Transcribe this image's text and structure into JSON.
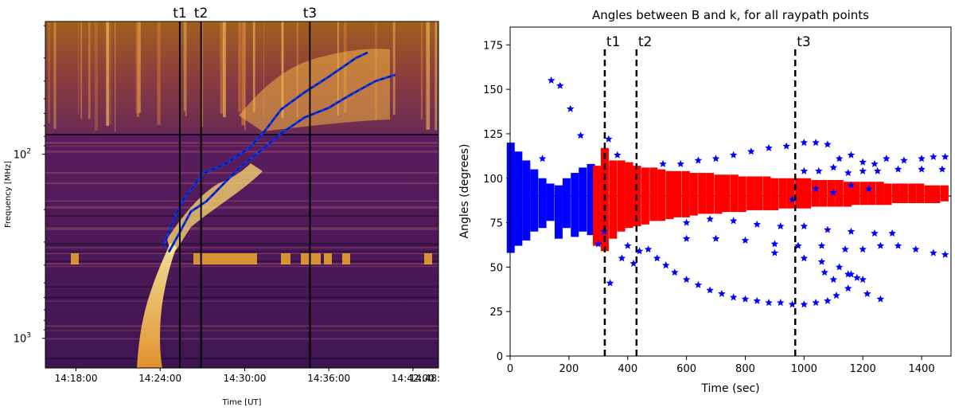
{
  "chart_data": [
    {
      "type": "heatmap",
      "panel": "left",
      "title": "",
      "xlabel": "Time [UT]",
      "ylabel": "Frequency [MHz]",
      "yscale": "log",
      "y_inverted": true,
      "ylim": [
        1450,
        19
      ],
      "xlim": [
        0,
        1
      ],
      "x_ticks": [
        {
          "label": "14:18:00",
          "pos": 0.078
        },
        {
          "label": "14:24:00",
          "pos": 0.292
        },
        {
          "label": "14:30:00",
          "pos": 0.507
        },
        {
          "label": "14:36:00",
          "pos": 0.721
        },
        {
          "label": "14:42:00",
          "pos": 0.935
        }
      ],
      "x_tick_partial": "14:48:",
      "y_ticks": [
        {
          "label": "10",
          "sup": "2",
          "value": 100
        },
        {
          "label": "10",
          "sup": "3",
          "value": 1000
        }
      ],
      "vlines": [
        {
          "label": "t1",
          "pos": 0.342
        },
        {
          "label": "t2",
          "pos": 0.396
        },
        {
          "label": "t3",
          "pos": 0.673
        }
      ],
      "tracks": [
        {
          "name": "lower-front",
          "points": [
            [
              0.314,
              340
            ],
            [
              0.34,
              270
            ],
            [
              0.37,
              205
            ],
            [
              0.41,
              180
            ],
            [
              0.46,
              140
            ],
            [
              0.5,
              115
            ],
            [
              0.55,
              95
            ],
            [
              0.6,
              77
            ],
            [
              0.66,
              63
            ],
            [
              0.72,
              56
            ],
            [
              0.78,
              47
            ],
            [
              0.84,
              40
            ],
            [
              0.89,
              37
            ]
          ]
        },
        {
          "name": "upper-front",
          "points": [
            [
              0.3,
              320
            ],
            [
              0.32,
              245
            ],
            [
              0.35,
              178
            ],
            [
              0.4,
              128
            ],
            [
              0.46,
              112
            ],
            [
              0.52,
              92
            ],
            [
              0.56,
              74
            ],
            [
              0.6,
              57
            ],
            [
              0.66,
              46
            ],
            [
              0.72,
              38
            ],
            [
              0.79,
              30
            ],
            [
              0.82,
              28
            ]
          ]
        }
      ]
    },
    {
      "type": "scatter",
      "panel": "right",
      "title": "Angles between B and k, for all raypath points",
      "xlabel": "Time (sec)",
      "ylabel": "Angles (degrees)",
      "xlim": [
        0,
        1500
      ],
      "ylim": [
        0,
        185
      ],
      "x_ticks": [
        0,
        200,
        400,
        600,
        800,
        1000,
        1200,
        1400
      ],
      "y_ticks": [
        0,
        25,
        50,
        75,
        100,
        125,
        150,
        175
      ],
      "hline": 90,
      "vlines": [
        {
          "label": "t1",
          "value": 322
        },
        {
          "label": "t2",
          "value": 430
        },
        {
          "label": "t3",
          "value": 970
        }
      ],
      "series": [
        {
          "name": "blue-columns",
          "color": "#0000ff",
          "columns": [
            [
              2,
              58,
              120
            ],
            [
              28,
              62,
              115
            ],
            [
              55,
              65,
              110
            ],
            [
              82,
              70,
              105
            ],
            [
              110,
              72,
              100
            ],
            [
              137,
              76,
              97
            ],
            [
              165,
              66,
              96
            ],
            [
              192,
              72,
              100
            ],
            [
              220,
              67,
              103
            ],
            [
              247,
              70,
              106
            ],
            [
              275,
              68,
              108
            ]
          ]
        },
        {
          "name": "red-columns",
          "color": "#ff0000",
          "columns": [
            [
              295,
              62,
              107
            ],
            [
              322,
              59,
              117
            ],
            [
              350,
              66,
              110
            ],
            [
              378,
              70,
              110
            ],
            [
              405,
              72,
              109
            ],
            [
              432,
              73,
              107
            ],
            [
              460,
              74,
              106
            ],
            [
              488,
              76,
              106
            ],
            [
              515,
              76,
              105
            ],
            [
              543,
              77,
              104
            ],
            [
              570,
              78,
              104
            ],
            [
              598,
              78,
              104
            ],
            [
              625,
              79,
              103
            ],
            [
              653,
              80,
              103
            ],
            [
              680,
              80,
              103
            ],
            [
              708,
              80,
              102
            ],
            [
              735,
              81,
              102
            ],
            [
              763,
              81,
              102
            ],
            [
              790,
              81,
              101
            ],
            [
              818,
              82,
              101
            ],
            [
              845,
              82,
              101
            ],
            [
              873,
              82,
              101
            ],
            [
              900,
              82,
              100
            ],
            [
              928,
              83,
              100
            ],
            [
              955,
              83,
              100
            ],
            [
              983,
              83,
              100
            ],
            [
              1010,
              83,
              100
            ],
            [
              1038,
              84,
              99
            ],
            [
              1065,
              84,
              99
            ],
            [
              1093,
              84,
              99
            ],
            [
              1120,
              84,
              99
            ],
            [
              1148,
              84,
              98
            ],
            [
              1175,
              85,
              98
            ],
            [
              1203,
              85,
              98
            ],
            [
              1230,
              85,
              98
            ],
            [
              1258,
              85,
              98
            ],
            [
              1285,
              85,
              97
            ],
            [
              1313,
              86,
              97
            ],
            [
              1340,
              86,
              97
            ],
            [
              1368,
              86,
              97
            ],
            [
              1395,
              86,
              97
            ],
            [
              1423,
              86,
              96
            ],
            [
              1450,
              86,
              96
            ],
            [
              1478,
              87,
              96
            ]
          ]
        },
        {
          "name": "blue-stars",
          "color": "#0000ff",
          "points": [
            [
              140,
              155
            ],
            [
              170,
              152
            ],
            [
              205,
              139
            ],
            [
              240,
              124
            ],
            [
              110,
              111
            ],
            [
              335,
              122
            ],
            [
              340,
              41
            ],
            [
              300,
              63
            ],
            [
              320,
              70
            ],
            [
              365,
              113
            ],
            [
              380,
              55
            ],
            [
              400,
              62
            ],
            [
              420,
              52
            ],
            [
              440,
              59
            ],
            [
              470,
              60
            ],
            [
              500,
              55
            ],
            [
              530,
              51
            ],
            [
              560,
              47
            ],
            [
              600,
              43
            ],
            [
              640,
              40
            ],
            [
              680,
              37
            ],
            [
              720,
              35
            ],
            [
              760,
              33
            ],
            [
              800,
              32
            ],
            [
              840,
              31
            ],
            [
              880,
              30
            ],
            [
              920,
              30
            ],
            [
              960,
              29
            ],
            [
              1000,
              29
            ],
            [
              1040,
              30
            ],
            [
              1080,
              31
            ],
            [
              1110,
              34
            ],
            [
              1150,
              38
            ],
            [
              1100,
              43
            ],
            [
              1070,
              47
            ],
            [
              1150,
              46
            ],
            [
              1180,
              44
            ],
            [
              1215,
              35
            ],
            [
              1260,
              32
            ],
            [
              520,
              108
            ],
            [
              580,
              108
            ],
            [
              640,
              110
            ],
            [
              700,
              111
            ],
            [
              760,
              113
            ],
            [
              820,
              115
            ],
            [
              880,
              117
            ],
            [
              940,
              118
            ],
            [
              1000,
              120
            ],
            [
              1040,
              120
            ],
            [
              1080,
              119
            ],
            [
              1120,
              111
            ],
            [
              1160,
              113
            ],
            [
              1200,
              109
            ],
            [
              1240,
              108
            ],
            [
              1280,
              111
            ],
            [
              1340,
              110
            ],
            [
              1400,
              111
            ],
            [
              1440,
              112
            ],
            [
              1480,
              112
            ],
            [
              1000,
              104
            ],
            [
              1050,
              104
            ],
            [
              1100,
              106
            ],
            [
              1150,
              103
            ],
            [
              1200,
              104
            ],
            [
              1250,
              104
            ],
            [
              1320,
              105
            ],
            [
              1400,
              105
            ],
            [
              1470,
              105
            ],
            [
              600,
              75
            ],
            [
              680,
              77
            ],
            [
              760,
              76
            ],
            [
              840,
              74
            ],
            [
              920,
              73
            ],
            [
              1000,
              73
            ],
            [
              1080,
              71
            ],
            [
              1160,
              70
            ],
            [
              1240,
              69
            ],
            [
              1300,
              69
            ],
            [
              600,
              66
            ],
            [
              700,
              66
            ],
            [
              800,
              65
            ],
            [
              900,
              63
            ],
            [
              980,
              62
            ],
            [
              1060,
              62
            ],
            [
              1140,
              60
            ],
            [
              1200,
              60
            ],
            [
              1260,
              62
            ],
            [
              1320,
              62
            ],
            [
              1380,
              60
            ],
            [
              1440,
              58
            ],
            [
              1480,
              57
            ],
            [
              900,
              58
            ],
            [
              1000,
              55
            ],
            [
              1060,
              53
            ],
            [
              1120,
              50
            ],
            [
              1160,
              46
            ],
            [
              1200,
              43
            ],
            [
              960,
              88
            ],
            [
              1040,
              94
            ],
            [
              1100,
              92
            ],
            [
              1160,
              96
            ],
            [
              1220,
              94
            ]
          ]
        }
      ]
    }
  ]
}
